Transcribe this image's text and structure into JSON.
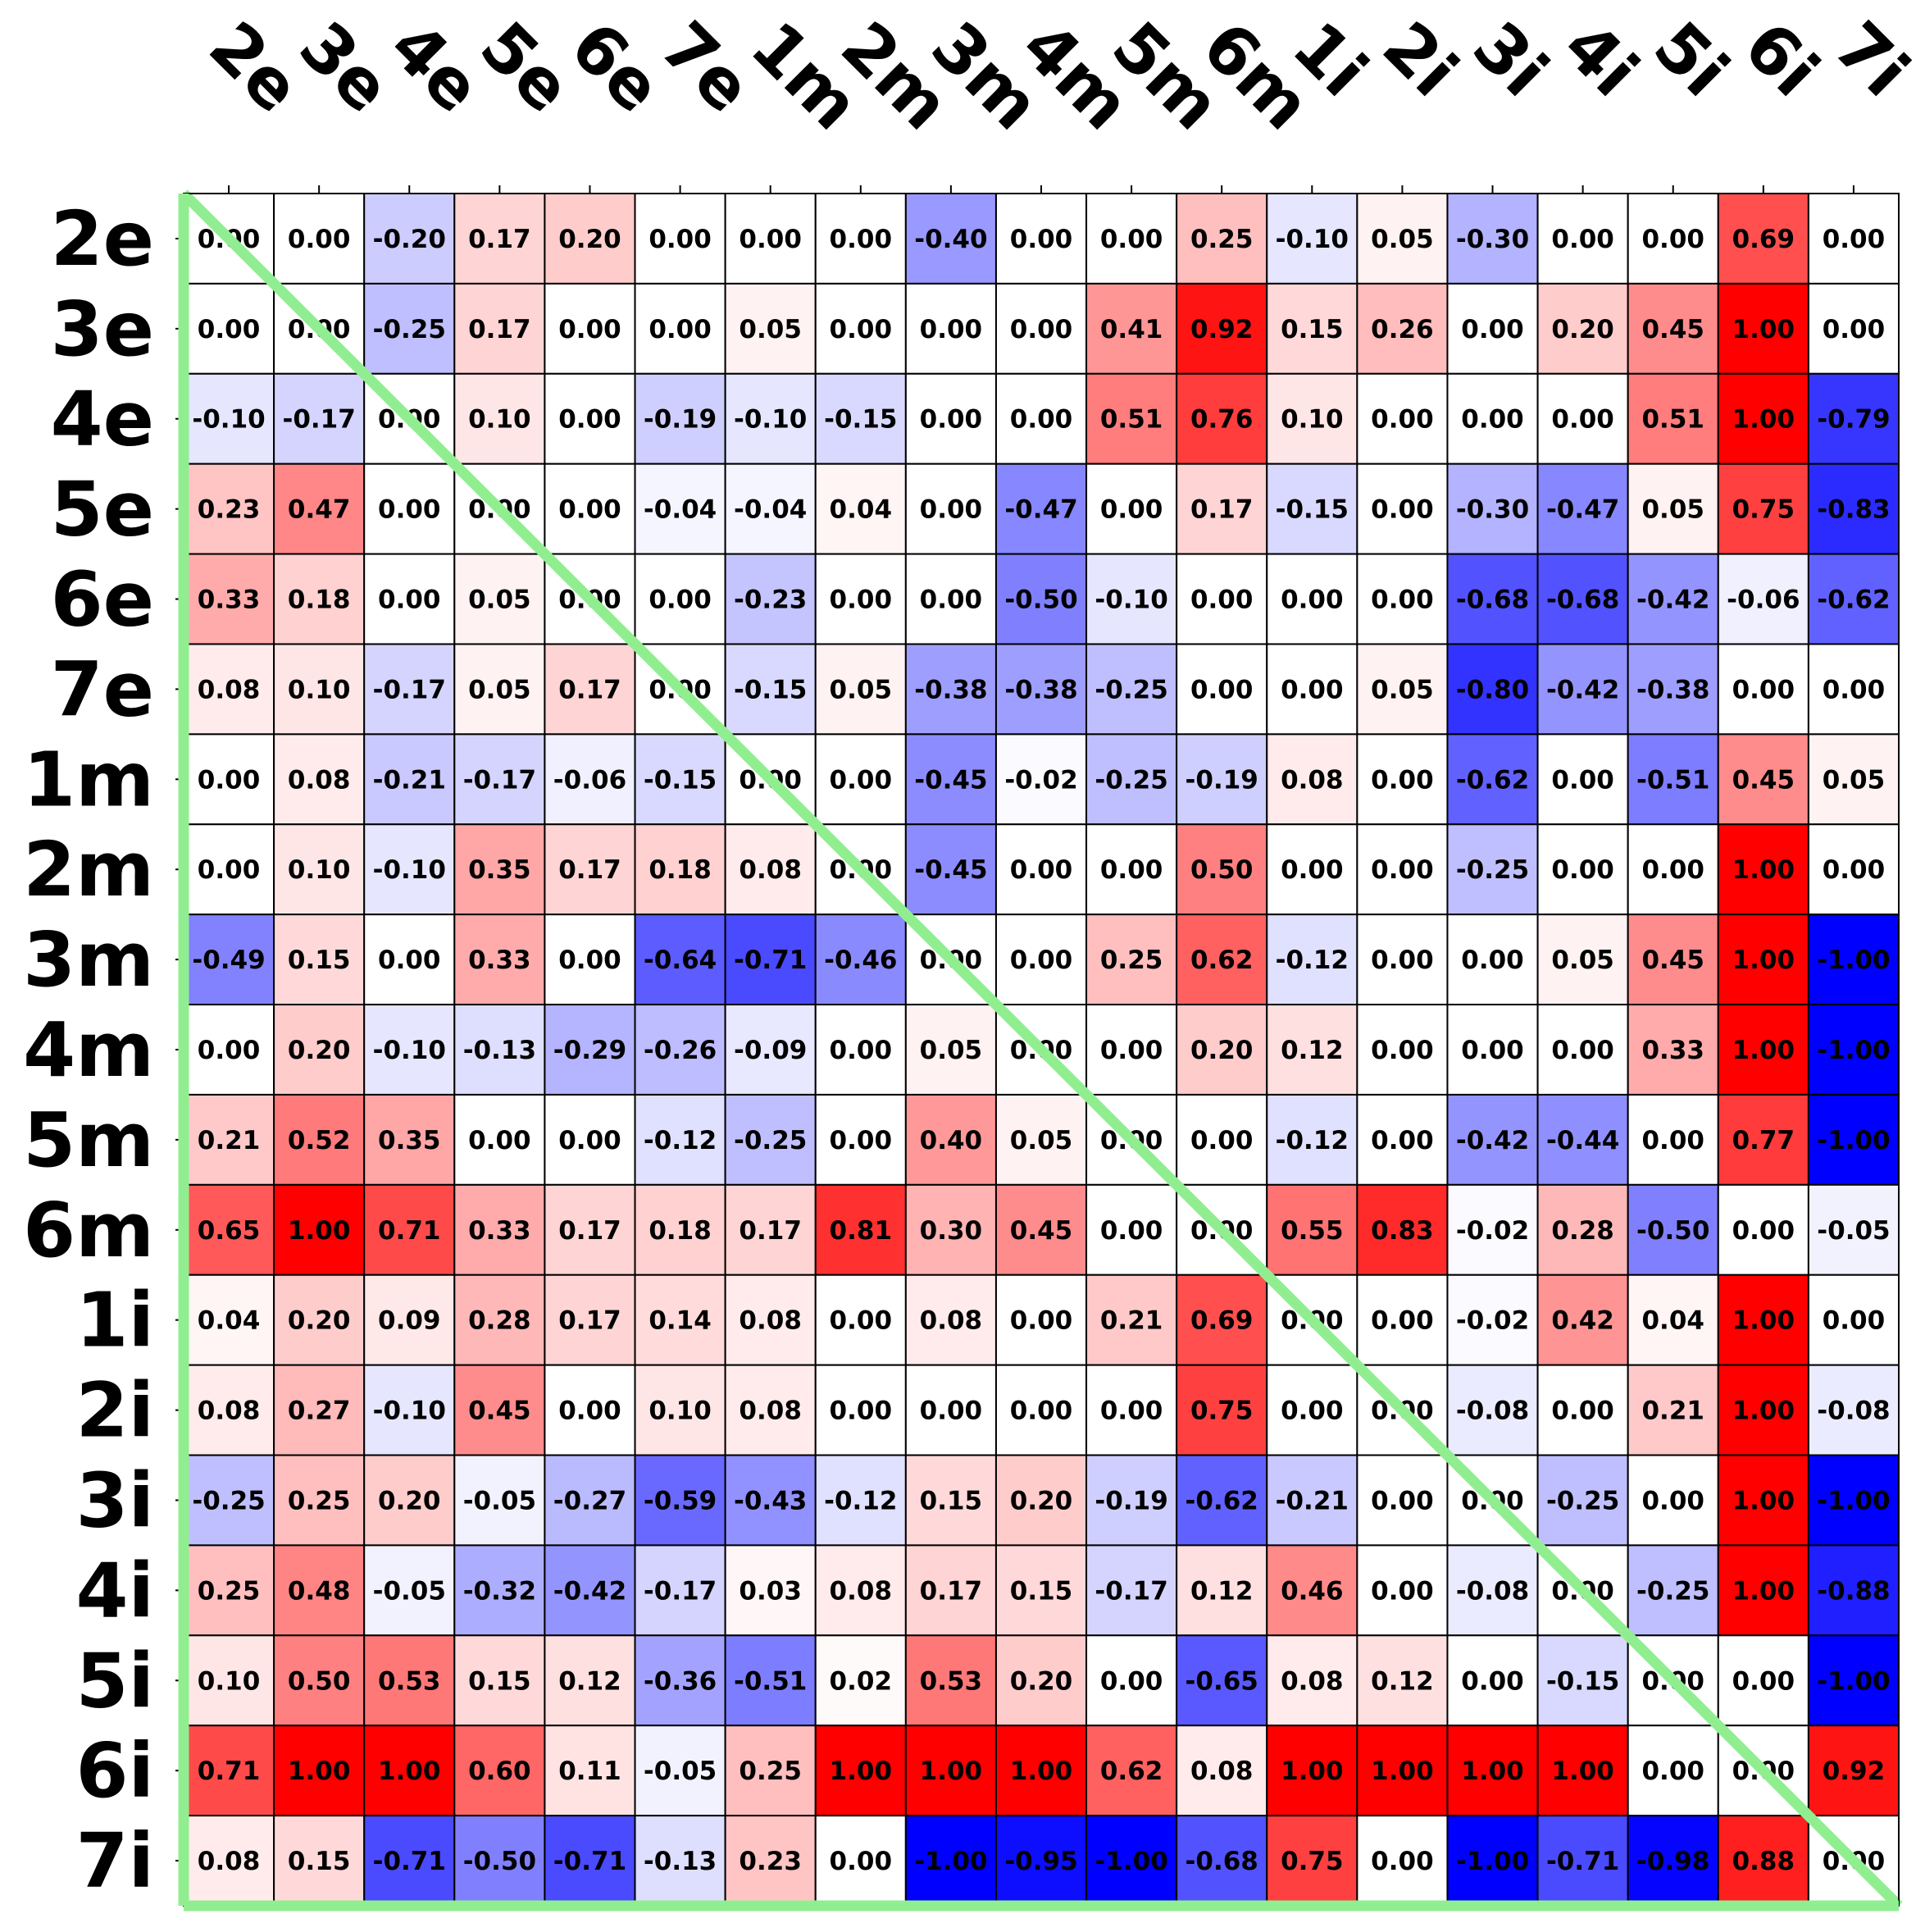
{
  "chart_data": {
    "type": "heatmap",
    "title": "",
    "xlabel": "",
    "ylabel": "",
    "colormap": "bwr",
    "vmin": -1.0,
    "vmax": 1.0,
    "value_format": "2 decimals",
    "diagonal_line": "top-left to bottom-right",
    "x_labels": [
      "2e",
      "3e",
      "4e",
      "5e",
      "6e",
      "7e",
      "1m",
      "2m",
      "3m",
      "4m",
      "5m",
      "6m",
      "1i",
      "2i",
      "3i",
      "4i",
      "5i",
      "6i",
      "7i"
    ],
    "y_labels": [
      "2e",
      "3e",
      "4e",
      "5e",
      "6e",
      "7e",
      "1m",
      "2m",
      "3m",
      "4m",
      "5m",
      "6m",
      "1i",
      "2i",
      "3i",
      "4i",
      "5i",
      "6i",
      "7i"
    ],
    "values": [
      [
        0.0,
        0.0,
        -0.2,
        0.17,
        0.2,
        0.0,
        0.0,
        0.0,
        -0.4,
        0.0,
        0.0,
        0.25,
        -0.1,
        0.05,
        -0.3,
        0.0,
        0.0,
        0.69,
        0.0
      ],
      [
        0.0,
        0.0,
        -0.25,
        0.17,
        0.0,
        0.0,
        0.05,
        0.0,
        0.0,
        0.0,
        0.41,
        0.92,
        0.15,
        0.26,
        0.0,
        0.2,
        0.45,
        1.0,
        0.0
      ],
      [
        -0.1,
        -0.17,
        0.0,
        0.1,
        0.0,
        -0.19,
        -0.1,
        -0.15,
        0.0,
        0.0,
        0.51,
        0.76,
        0.1,
        0.0,
        0.0,
        0.0,
        0.51,
        1.0,
        -0.79
      ],
      [
        0.23,
        0.47,
        0.0,
        0.0,
        0.0,
        -0.04,
        -0.04,
        0.04,
        0.0,
        -0.47,
        0.0,
        0.17,
        -0.15,
        0.0,
        -0.3,
        -0.47,
        0.05,
        0.75,
        -0.83
      ],
      [
        0.33,
        0.18,
        0.0,
        0.05,
        0.0,
        0.0,
        -0.23,
        0.0,
        0.0,
        -0.5,
        -0.1,
        0.0,
        0.0,
        0.0,
        -0.68,
        -0.68,
        -0.42,
        -0.06,
        -0.62
      ],
      [
        0.08,
        0.1,
        -0.17,
        0.05,
        0.17,
        0.0,
        -0.15,
        0.05,
        -0.38,
        -0.38,
        -0.25,
        0.0,
        0.0,
        0.05,
        -0.8,
        -0.42,
        -0.38,
        0.0,
        0.0
      ],
      [
        0.0,
        0.08,
        -0.21,
        -0.17,
        -0.06,
        -0.15,
        0.0,
        0.0,
        -0.45,
        -0.02,
        -0.25,
        -0.19,
        0.08,
        0.0,
        -0.62,
        0.0,
        -0.51,
        0.45,
        0.05
      ],
      [
        0.0,
        0.1,
        -0.1,
        0.35,
        0.17,
        0.18,
        0.08,
        0.0,
        -0.45,
        0.0,
        0.0,
        0.5,
        0.0,
        0.0,
        -0.25,
        0.0,
        0.0,
        1.0,
        0.0
      ],
      [
        -0.49,
        0.15,
        0.0,
        0.33,
        0.0,
        -0.64,
        -0.71,
        -0.46,
        0.0,
        0.0,
        0.25,
        0.62,
        -0.12,
        0.0,
        0.0,
        0.05,
        0.45,
        1.0,
        -1.0
      ],
      [
        0.0,
        0.2,
        -0.1,
        -0.13,
        -0.29,
        -0.26,
        -0.09,
        0.0,
        0.05,
        0.0,
        0.0,
        0.2,
        0.12,
        0.0,
        0.0,
        0.0,
        0.33,
        1.0,
        -1.0
      ],
      [
        0.21,
        0.52,
        0.35,
        0.0,
        0.0,
        -0.12,
        -0.25,
        0.0,
        0.4,
        0.05,
        0.0,
        0.0,
        -0.12,
        0.0,
        -0.42,
        -0.44,
        0.0,
        0.77,
        -1.0
      ],
      [
        0.65,
        1.0,
        0.71,
        0.33,
        0.17,
        0.18,
        0.17,
        0.81,
        0.3,
        0.45,
        0.0,
        0.0,
        0.55,
        0.83,
        -0.02,
        0.28,
        -0.5,
        0.0,
        -0.05
      ],
      [
        0.04,
        0.2,
        0.09,
        0.28,
        0.17,
        0.14,
        0.08,
        0.0,
        0.08,
        0.0,
        0.21,
        0.69,
        0.0,
        0.0,
        -0.02,
        0.42,
        0.04,
        1.0,
        0.0
      ],
      [
        0.08,
        0.27,
        -0.1,
        0.45,
        0.0,
        0.1,
        0.08,
        0.0,
        0.0,
        0.0,
        0.0,
        0.75,
        0.0,
        0.0,
        -0.08,
        0.0,
        0.21,
        1.0,
        -0.08
      ],
      [
        -0.25,
        0.25,
        0.2,
        -0.05,
        -0.27,
        -0.59,
        -0.43,
        -0.12,
        0.15,
        0.2,
        -0.19,
        -0.62,
        -0.21,
        0.0,
        0.0,
        -0.25,
        0.0,
        1.0,
        -1.0
      ],
      [
        0.25,
        0.48,
        -0.05,
        -0.32,
        -0.42,
        -0.17,
        0.03,
        0.08,
        0.17,
        0.15,
        -0.17,
        0.12,
        0.46,
        0.0,
        -0.08,
        0.0,
        -0.25,
        1.0,
        -0.88
      ],
      [
        0.1,
        0.5,
        0.53,
        0.15,
        0.12,
        -0.36,
        -0.51,
        0.02,
        0.53,
        0.2,
        0.0,
        -0.65,
        0.08,
        0.12,
        0.0,
        -0.15,
        0.0,
        0.0,
        -1.0
      ],
      [
        0.71,
        1.0,
        1.0,
        0.6,
        0.11,
        -0.05,
        0.25,
        1.0,
        1.0,
        1.0,
        0.62,
        0.08,
        1.0,
        1.0,
        1.0,
        1.0,
        0.0,
        0.0,
        0.92
      ],
      [
        0.08,
        0.15,
        -0.71,
        -0.5,
        -0.71,
        -0.13,
        0.23,
        0.0,
        -1.0,
        -0.95,
        -1.0,
        -0.68,
        0.75,
        0.0,
        -1.0,
        -0.71,
        -0.98,
        0.88,
        0.0
      ]
    ]
  },
  "colors": {
    "positive": "#ff0000",
    "negative": "#0000ff",
    "neutral": "#ffffff",
    "grid": "#000000",
    "diagonal": "#90ee90"
  }
}
